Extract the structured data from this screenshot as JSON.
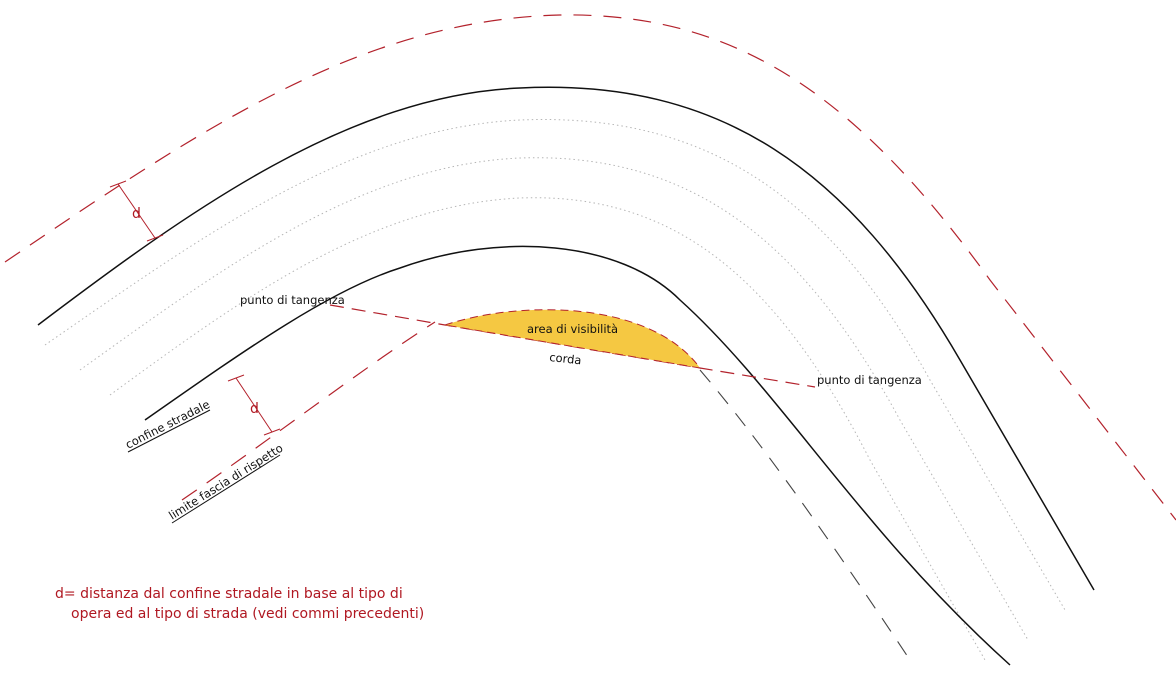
{
  "diagram": {
    "labels": {
      "tangent_point_left": "punto di tangenza",
      "tangent_point_right": "punto di tangenza",
      "visibility_area": "area di visibilità",
      "chord": "corda",
      "road_boundary": "confine stradale",
      "setback_limit": "limite fascia di rispetto",
      "distance_top": "d",
      "distance_bottom": "d"
    },
    "legend": {
      "line1": "d=  distanza dal confine stradale  in base  al tipo di",
      "line2": "opera ed al tipo di strada (vedi commi precedenti)"
    },
    "colors": {
      "road_edge": "#111111",
      "setback_dashed": "#b3222c",
      "lane_dotted": "#b5b5b5",
      "visibility_fill": "#f5c842",
      "annotation_text": "#b01822"
    }
  }
}
